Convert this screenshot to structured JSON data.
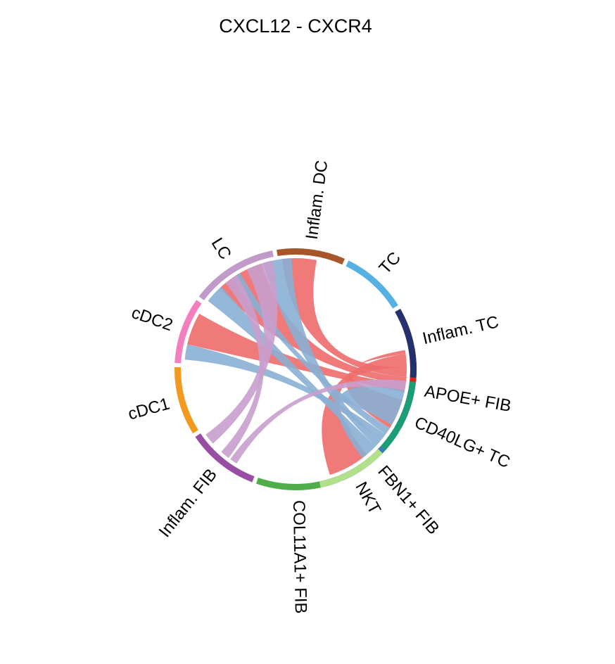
{
  "chart_data": {
    "type": "chord",
    "title": "CXCL12 - CXCR4",
    "sectors": [
      {
        "name": "APOE+ FIB",
        "color": "#e3201c",
        "start": 350,
        "end": 390
      },
      {
        "name": "FBN1+ FIB",
        "color": "#3a7cb6",
        "start": 392,
        "end": 427
      },
      {
        "name": "COL11A1+ FIB",
        "color": "#4fae4a",
        "start": 429,
        "end": 469
      },
      {
        "name": "Inflam. FIB",
        "color": "#984ea3",
        "start": 471,
        "end": 506
      },
      {
        "name": "cDC1",
        "color": "#f39a1e",
        "start": 508,
        "end": 541
      },
      {
        "name": "cDC2",
        "color": "#f37fbf",
        "start": 543,
        "end": 575
      },
      {
        "name": "LC",
        "color": "#c09ac8",
        "start": 577,
        "end": 619
      },
      {
        "name": "Inflam. DC",
        "color": "#a65628",
        "start": 621,
        "end": 654
      },
      {
        "name": "TC",
        "color": "#56b1e3",
        "start": 656,
        "end": 688
      },
      {
        "name": "Inflam. TC",
        "color": "#25306f",
        "start": 690,
        "end": 724
      },
      {
        "name": "CD40LG+ TC",
        "color": "#1b9e77",
        "start": 726,
        "end": 762
      },
      {
        "name": "NKT",
        "color": "#b2df8a",
        "start": 764,
        "end": 798
      }
    ],
    "links": [
      {
        "source": "APOE+ FIB",
        "target": "Inflam. DC",
        "color": "#ee6b6b",
        "s": [
          359,
          364
        ],
        "t": [
          623,
          641
        ]
      },
      {
        "source": "APOE+ FIB",
        "target": "LC",
        "color": "#ee6b6b",
        "s": [
          364,
          368
        ],
        "t": [
          587,
          612
        ]
      },
      {
        "source": "APOE+ FIB",
        "target": "cDC2",
        "color": "#ee6b6b",
        "s": [
          368,
          372
        ],
        "t": [
          553,
          570
        ]
      },
      {
        "source": "APOE+ FIB",
        "target": "NKT",
        "color": "#ee6b6b",
        "s": [
          352,
          359
        ],
        "t": [
          770,
          792
        ]
      },
      {
        "source": "APOE+ FIB",
        "target": "CD40LG+ TC",
        "color": "#ee6b6b",
        "s": [
          350,
          352
        ],
        "t": [
          736,
          752
        ]
      },
      {
        "source": "FBN1+ FIB",
        "target": "LC",
        "color": "#8aafd4",
        "s": [
          392,
          396
        ],
        "t": [
          595,
          600
        ]
      },
      {
        "source": "FBN1+ FIB",
        "target": "cDC2",
        "color": "#8aafd4",
        "s": [
          396,
          400
        ],
        "t": [
          545,
          553
        ]
      },
      {
        "source": "FBN1+ FIB",
        "target": "Inflam. DC",
        "color": "#8aafd4",
        "s": [
          400,
          404
        ],
        "t": [
          613,
          628
        ]
      },
      {
        "source": "FBN1+ FIB",
        "target": "LC",
        "color": "#8aafd4",
        "s": [
          404,
          408
        ],
        "t": [
          578,
          588
        ]
      },
      {
        "source": "FBN1+ FIB",
        "target": "CD40LG+ TC",
        "color": "#8aafd4",
        "s": [
          408,
          413
        ],
        "t": [
          731,
          750
        ]
      },
      {
        "source": "Inflam. FIB",
        "target": "LC",
        "color": "#c89ecd",
        "s": [
          498,
          504
        ],
        "t": [
          604,
          618
        ]
      },
      {
        "source": "Inflam. FIB",
        "target": "LC",
        "color": "#c89ecd",
        "s": [
          487,
          492
        ],
        "t": [
          591,
          598
        ]
      },
      {
        "source": "Inflam. FIB",
        "target": "CD40LG+ TC",
        "color": "#c89ecd",
        "s": [
          482,
          486
        ],
        "t": [
          726,
          731
        ]
      }
    ],
    "grid": false,
    "legend": "none"
  }
}
